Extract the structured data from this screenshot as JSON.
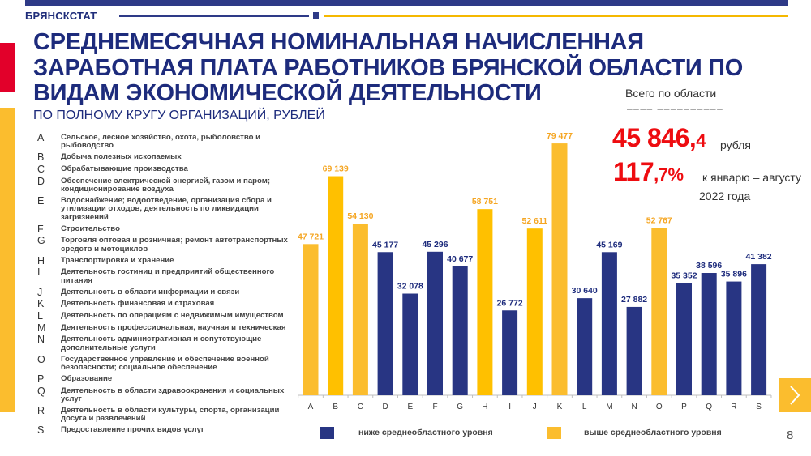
{
  "header": {
    "brand": "БРЯНСКСТАТ",
    "title": "СРЕДНЕМЕСЯЧНАЯ НОМИНАЛЬНАЯ НАЧИСЛЕННАЯ  ЗАРАБОТНАЯ ПЛАТА РАБОТНИКОВ БРЯНСКОЙ ОБЛАСТИ ПО ВИДАМ ЭКОНОМИЧЕСКОЙ ДЕЯТЕЛЬНОСТИ",
    "subtitle": "ПО ПОЛНОМУ КРУГУ ОРГАНИЗАЦИЙ, РУБЛЕЙ"
  },
  "colors": {
    "navy": "#1d2b7c",
    "bar_below": "#283583",
    "bar_above": "#fbbd2e",
    "bar_above_alt": "#ffc000",
    "accent_red": "#e2002a",
    "highlight_red": "#ee0c10"
  },
  "summary": {
    "label": "Всего по области",
    "dashes": "–––– ––––––––––",
    "total_main": "45 846,",
    "total_decimal": "4",
    "total_unit": "рубля",
    "pct_main": "117",
    "pct_decimal": ",7%",
    "pct_note_line1": "к январю – августу",
    "pct_note_line2": "2022 года"
  },
  "activities": [
    {
      "code": "A",
      "text": "Сельское, лесное хозяйство, охота, рыболовство и рыбоводство"
    },
    {
      "code": "B",
      "text": "Добыча полезных ископаемых"
    },
    {
      "code": "C",
      "text": "Обрабатывающие производства"
    },
    {
      "code": "D",
      "text": "Обеспечение электрической энергией, газом и паром; кондиционирование воздуха"
    },
    {
      "code": "E",
      "text": "Водоснабжение; водоотведение, организация сбора и утилизации отходов, деятельность по ликвидации загрязнений"
    },
    {
      "code": "F",
      "text": "Строительство"
    },
    {
      "code": "G",
      "text": "Торговля оптовая и розничная; ремонт автотранспортных средств и мотоциклов"
    },
    {
      "code": "H",
      "text": "Транспортировка и хранение"
    },
    {
      "code": "I",
      "text": "Деятельность гостиниц и предприятий общественного питания"
    },
    {
      "code": "J",
      "text": "Деятельность в области информации и связи"
    },
    {
      "code": "K",
      "text": "Деятельность финансовая и страховая"
    },
    {
      "code": "L",
      "text": "Деятельность по операциям с недвижимым имуществом"
    },
    {
      "code": "M",
      "text": "Деятельность профессиональная, научная и техническая"
    },
    {
      "code": "N",
      "text": "Деятельность административная и сопутствующие дополнительные услуги"
    },
    {
      "code": "O",
      "text": "Государственное управление и обеспечение военной безопасности; социальное обеспечение"
    },
    {
      "code": "P",
      "text": "Образование"
    },
    {
      "code": "Q",
      "text": "Деятельность в области здравоохранения и социальных услуг"
    },
    {
      "code": "R",
      "text": "Деятельность в области культуры, спорта, организации досуга и развлечений"
    },
    {
      "code": "S",
      "text": "Предоставление прочих видов услуг"
    }
  ],
  "chart_data": {
    "type": "bar",
    "title": "Среднемесячная номинальная начисленная заработная плата работников Брянской области по видам экономической деятельности",
    "xlabel": "",
    "ylabel": "рублей",
    "categories": [
      "A",
      "B",
      "C",
      "D",
      "E",
      "F",
      "G",
      "H",
      "I",
      "J",
      "K",
      "L",
      "M",
      "N",
      "O",
      "P",
      "Q",
      "R",
      "S"
    ],
    "values": [
      47721,
      69139,
      54130,
      45177,
      32078,
      45296,
      40677,
      58751,
      26772,
      52611,
      79477,
      30640,
      45169,
      27882,
      52767,
      35352,
      38596,
      35896,
      41382
    ],
    "value_labels": [
      "47 721",
      "69 139",
      "54 130",
      "45 177",
      "32 078",
      "45 296",
      "40 677",
      "58 751",
      "26 772",
      "52 611",
      "79 477",
      "30 640",
      "45 169",
      "27 882",
      "52 767",
      "35 352",
      "38 596",
      "35 896",
      "41 382"
    ],
    "group": [
      "above",
      "above",
      "above",
      "below",
      "below",
      "below",
      "below",
      "above",
      "below",
      "above",
      "above",
      "below",
      "below",
      "below",
      "above",
      "below",
      "below",
      "below",
      "below"
    ],
    "reference_value": 45846.4,
    "ylim": [
      0,
      86400
    ],
    "grid": false,
    "y_axis_visible": false,
    "legend": {
      "placement": "bottom",
      "entries": [
        {
          "key": "below",
          "label": "ниже среднеобластного уровня"
        },
        {
          "key": "above",
          "label": "выше среднеобластного уровня"
        }
      ]
    }
  },
  "navigation": {
    "next_label": "next-slide",
    "page_number": "8"
  }
}
